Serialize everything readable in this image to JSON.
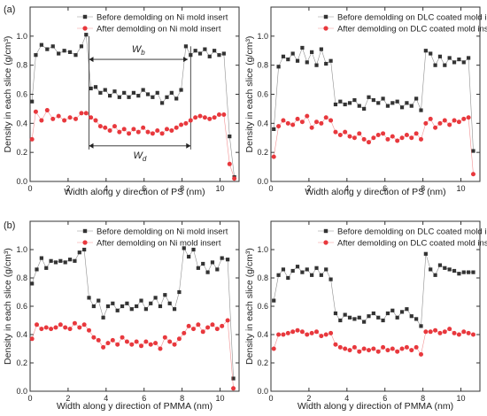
{
  "figure": {
    "panel_labels": [
      "(a)",
      "(b)"
    ]
  },
  "chart_data": [
    {
      "type": "scatter",
      "panel": "(a)",
      "xlabel": "Width along y direction of PS (nm)",
      "ylabel": "Density in each slice (g/cm³)",
      "xlim": [
        0,
        11
      ],
      "ylim": [
        0,
        1.2
      ],
      "xticks": [
        0,
        2,
        4,
        6,
        8,
        10
      ],
      "yticks": [
        0.0,
        0.2,
        0.4,
        0.6,
        0.8,
        1.0
      ],
      "legend_position": "top-right",
      "annotations": {
        "wb": "W",
        "wb_sub": "b",
        "wd": "W",
        "wd_sub": "d"
      },
      "series": [
        {
          "name": "Before demolding on Ni mold insert",
          "color": "#333333",
          "marker": "square",
          "x": [
            0.1,
            0.3,
            0.6,
            0.9,
            1.2,
            1.5,
            1.8,
            2.1,
            2.4,
            2.7,
            2.95,
            3.2,
            3.45,
            3.7,
            3.95,
            4.2,
            4.45,
            4.7,
            4.95,
            5.2,
            5.45,
            5.7,
            5.95,
            6.2,
            6.45,
            6.7,
            6.95,
            7.2,
            7.45,
            7.7,
            7.95,
            8.2,
            8.45,
            8.7,
            8.95,
            9.2,
            9.45,
            9.7,
            9.95,
            10.2,
            10.5,
            10.75
          ],
          "y": [
            0.55,
            0.87,
            0.94,
            0.91,
            0.93,
            0.88,
            0.9,
            0.89,
            0.87,
            0.93,
            1.01,
            0.64,
            0.65,
            0.61,
            0.63,
            0.59,
            0.62,
            0.58,
            0.61,
            0.58,
            0.61,
            0.59,
            0.63,
            0.6,
            0.58,
            0.61,
            0.54,
            0.58,
            0.61,
            0.57,
            0.63,
            0.93,
            0.87,
            0.9,
            0.88,
            0.91,
            0.86,
            0.9,
            0.87,
            0.88,
            0.31,
            0.03
          ]
        },
        {
          "name": "After demolding on Ni mold insert",
          "color": "#e8383d",
          "marker": "circle",
          "x": [
            0.1,
            0.3,
            0.6,
            0.9,
            1.2,
            1.5,
            1.8,
            2.1,
            2.4,
            2.7,
            2.95,
            3.2,
            3.45,
            3.7,
            3.95,
            4.2,
            4.45,
            4.7,
            4.95,
            5.2,
            5.45,
            5.7,
            5.95,
            6.2,
            6.45,
            6.7,
            6.95,
            7.2,
            7.45,
            7.7,
            7.95,
            8.2,
            8.45,
            8.7,
            8.95,
            9.2,
            9.45,
            9.7,
            9.95,
            10.2,
            10.5,
            10.75
          ],
          "y": [
            0.29,
            0.48,
            0.42,
            0.49,
            0.43,
            0.45,
            0.42,
            0.44,
            0.43,
            0.47,
            0.47,
            0.44,
            0.42,
            0.38,
            0.37,
            0.35,
            0.38,
            0.34,
            0.36,
            0.33,
            0.36,
            0.34,
            0.37,
            0.34,
            0.33,
            0.35,
            0.33,
            0.36,
            0.35,
            0.37,
            0.39,
            0.4,
            0.42,
            0.44,
            0.45,
            0.44,
            0.43,
            0.44,
            0.46,
            0.46,
            0.12,
            0.02
          ]
        }
      ]
    },
    {
      "type": "scatter",
      "panel": "",
      "xlabel": "Width along y direction of PS (nm)",
      "ylabel": "Density in each slice (g/cm³)",
      "xlim": [
        0,
        11
      ],
      "ylim": [
        0,
        1.2
      ],
      "xticks": [
        0,
        2,
        4,
        6,
        8,
        10
      ],
      "yticks": [
        0.0,
        0.2,
        0.4,
        0.6,
        0.8,
        1.0
      ],
      "legend_position": "top-right",
      "series": [
        {
          "name": "Before demolding on DLC coated mold insert",
          "color": "#333333",
          "marker": "square",
          "x": [
            0.15,
            0.4,
            0.65,
            0.9,
            1.15,
            1.4,
            1.65,
            1.9,
            2.15,
            2.4,
            2.65,
            2.9,
            3.15,
            3.4,
            3.65,
            3.9,
            4.15,
            4.4,
            4.65,
            4.9,
            5.15,
            5.4,
            5.65,
            5.9,
            6.15,
            6.4,
            6.65,
            6.9,
            7.15,
            7.4,
            7.65,
            7.9,
            8.15,
            8.4,
            8.65,
            8.9,
            9.15,
            9.4,
            9.65,
            9.9,
            10.15,
            10.4,
            10.65
          ],
          "y": [
            0.36,
            0.79,
            0.86,
            0.84,
            0.88,
            0.83,
            0.92,
            0.82,
            0.89,
            0.8,
            0.91,
            0.81,
            0.83,
            0.53,
            0.55,
            0.53,
            0.54,
            0.56,
            0.52,
            0.5,
            0.58,
            0.56,
            0.54,
            0.57,
            0.52,
            0.54,
            0.55,
            0.51,
            0.54,
            0.52,
            0.57,
            0.49,
            0.9,
            0.88,
            0.8,
            0.86,
            0.8,
            0.85,
            0.82,
            0.84,
            0.82,
            0.85,
            0.21
          ]
        },
        {
          "name": "After demolding on DLC coated mold insert",
          "color": "#e8383d",
          "marker": "circle",
          "x": [
            0.15,
            0.4,
            0.65,
            0.9,
            1.15,
            1.4,
            1.65,
            1.9,
            2.15,
            2.4,
            2.65,
            2.9,
            3.15,
            3.4,
            3.65,
            3.9,
            4.15,
            4.4,
            4.65,
            4.9,
            5.15,
            5.4,
            5.65,
            5.9,
            6.15,
            6.4,
            6.65,
            6.9,
            7.15,
            7.4,
            7.65,
            7.9,
            8.15,
            8.4,
            8.65,
            8.9,
            9.15,
            9.4,
            9.65,
            9.9,
            10.15,
            10.4,
            10.65
          ],
          "y": [
            0.17,
            0.38,
            0.42,
            0.4,
            0.39,
            0.43,
            0.41,
            0.45,
            0.37,
            0.41,
            0.4,
            0.44,
            0.42,
            0.34,
            0.32,
            0.34,
            0.31,
            0.3,
            0.33,
            0.29,
            0.27,
            0.3,
            0.32,
            0.33,
            0.29,
            0.31,
            0.28,
            0.3,
            0.32,
            0.3,
            0.33,
            0.29,
            0.4,
            0.43,
            0.37,
            0.4,
            0.42,
            0.39,
            0.42,
            0.41,
            0.43,
            0.44,
            0.05
          ]
        }
      ]
    },
    {
      "type": "scatter",
      "panel": "(b)",
      "xlabel": "Width along y direction of PMMA (nm)",
      "ylabel": "Density in each slice (g/cm³)",
      "xlim": [
        0,
        11
      ],
      "ylim": [
        0,
        1.2
      ],
      "xticks": [
        0,
        2,
        4,
        6,
        8,
        10
      ],
      "yticks": [
        0.0,
        0.2,
        0.4,
        0.6,
        0.8,
        1.0
      ],
      "legend_position": "top-right",
      "series": [
        {
          "name": "Before demolding on Ni mold insert",
          "color": "#333333",
          "marker": "square",
          "x": [
            0.1,
            0.35,
            0.6,
            0.85,
            1.1,
            1.35,
            1.6,
            1.85,
            2.1,
            2.35,
            2.6,
            2.85,
            3.1,
            3.35,
            3.6,
            3.85,
            4.1,
            4.35,
            4.6,
            4.85,
            5.1,
            5.35,
            5.6,
            5.85,
            6.1,
            6.35,
            6.6,
            6.85,
            7.1,
            7.35,
            7.6,
            7.85,
            8.1,
            8.35,
            8.6,
            8.85,
            9.1,
            9.35,
            9.6,
            9.85,
            10.1,
            10.4,
            10.7
          ],
          "y": [
            0.76,
            0.86,
            0.94,
            0.87,
            0.92,
            0.91,
            0.92,
            0.91,
            0.93,
            0.92,
            0.98,
            1.0,
            0.66,
            0.6,
            0.64,
            0.52,
            0.6,
            0.62,
            0.57,
            0.6,
            0.62,
            0.58,
            0.6,
            0.64,
            0.58,
            0.62,
            0.66,
            0.6,
            0.68,
            0.62,
            0.58,
            0.7,
            1.01,
            0.95,
            1.0,
            0.87,
            0.9,
            0.84,
            0.91,
            0.86,
            0.94,
            0.93,
            0.09
          ]
        },
        {
          "name": "After demolding on Ni mold insert",
          "color": "#e8383d",
          "marker": "circle",
          "x": [
            0.1,
            0.35,
            0.6,
            0.85,
            1.1,
            1.35,
            1.6,
            1.85,
            2.1,
            2.35,
            2.6,
            2.85,
            3.1,
            3.35,
            3.6,
            3.85,
            4.1,
            4.35,
            4.6,
            4.85,
            5.1,
            5.35,
            5.6,
            5.85,
            6.1,
            6.35,
            6.6,
            6.85,
            7.1,
            7.35,
            7.6,
            7.85,
            8.1,
            8.35,
            8.6,
            8.85,
            9.1,
            9.35,
            9.6,
            9.85,
            10.1,
            10.4,
            10.7
          ],
          "y": [
            0.37,
            0.47,
            0.44,
            0.45,
            0.44,
            0.45,
            0.47,
            0.45,
            0.44,
            0.48,
            0.45,
            0.47,
            0.43,
            0.38,
            0.36,
            0.31,
            0.34,
            0.36,
            0.33,
            0.38,
            0.35,
            0.33,
            0.35,
            0.32,
            0.35,
            0.33,
            0.34,
            0.3,
            0.38,
            0.35,
            0.33,
            0.37,
            0.41,
            0.46,
            0.44,
            0.47,
            0.42,
            0.45,
            0.47,
            0.44,
            0.46,
            0.5,
            0.02
          ]
        }
      ]
    },
    {
      "type": "scatter",
      "panel": "",
      "xlabel": "Width along y direction of PMMA (nm)",
      "ylabel": "Density in each slice (g/cm³)",
      "xlim": [
        0,
        11
      ],
      "ylim": [
        0,
        1.2
      ],
      "xticks": [
        0,
        2,
        4,
        6,
        8,
        10
      ],
      "yticks": [
        0.0,
        0.2,
        0.4,
        0.6,
        0.8,
        1.0
      ],
      "legend_position": "top-right",
      "series": [
        {
          "name": "Before demolding on DLC coated mold insert",
          "color": "#333333",
          "marker": "square",
          "x": [
            0.15,
            0.4,
            0.65,
            0.9,
            1.15,
            1.4,
            1.65,
            1.9,
            2.15,
            2.4,
            2.65,
            2.9,
            3.15,
            3.4,
            3.65,
            3.9,
            4.15,
            4.4,
            4.65,
            4.9,
            5.15,
            5.4,
            5.65,
            5.9,
            6.15,
            6.4,
            6.65,
            6.9,
            7.15,
            7.4,
            7.65,
            7.9,
            8.15,
            8.4,
            8.65,
            8.9,
            9.15,
            9.4,
            9.65,
            9.9,
            10.15,
            10.4,
            10.65
          ],
          "y": [
            0.64,
            0.82,
            0.86,
            0.8,
            0.85,
            0.88,
            0.84,
            0.86,
            0.82,
            0.87,
            0.82,
            0.86,
            0.79,
            0.55,
            0.5,
            0.54,
            0.52,
            0.51,
            0.52,
            0.49,
            0.53,
            0.55,
            0.52,
            0.5,
            0.55,
            0.57,
            0.52,
            0.56,
            0.58,
            0.53,
            0.51,
            0.46,
            0.97,
            0.86,
            0.82,
            0.89,
            0.87,
            0.86,
            0.85,
            0.83,
            0.84,
            0.84,
            0.84
          ]
        },
        {
          "name": "After demolding on DLC coated mold insert",
          "color": "#e8383d",
          "marker": "circle",
          "x": [
            0.15,
            0.4,
            0.65,
            0.9,
            1.15,
            1.4,
            1.65,
            1.9,
            2.15,
            2.4,
            2.65,
            2.9,
            3.15,
            3.4,
            3.65,
            3.9,
            4.15,
            4.4,
            4.65,
            4.9,
            5.15,
            5.4,
            5.65,
            5.9,
            6.15,
            6.4,
            6.65,
            6.9,
            7.15,
            7.4,
            7.65,
            7.9,
            8.15,
            8.4,
            8.65,
            8.9,
            9.15,
            9.4,
            9.65,
            9.9,
            10.15,
            10.4,
            10.65
          ],
          "y": [
            0.3,
            0.4,
            0.4,
            0.41,
            0.42,
            0.43,
            0.42,
            0.4,
            0.41,
            0.42,
            0.39,
            0.4,
            0.41,
            0.33,
            0.31,
            0.3,
            0.29,
            0.31,
            0.28,
            0.3,
            0.29,
            0.3,
            0.28,
            0.31,
            0.29,
            0.3,
            0.28,
            0.3,
            0.31,
            0.29,
            0.31,
            0.26,
            0.42,
            0.42,
            0.43,
            0.41,
            0.42,
            0.44,
            0.41,
            0.4,
            0.42,
            0.41,
            0.4
          ]
        }
      ]
    }
  ]
}
